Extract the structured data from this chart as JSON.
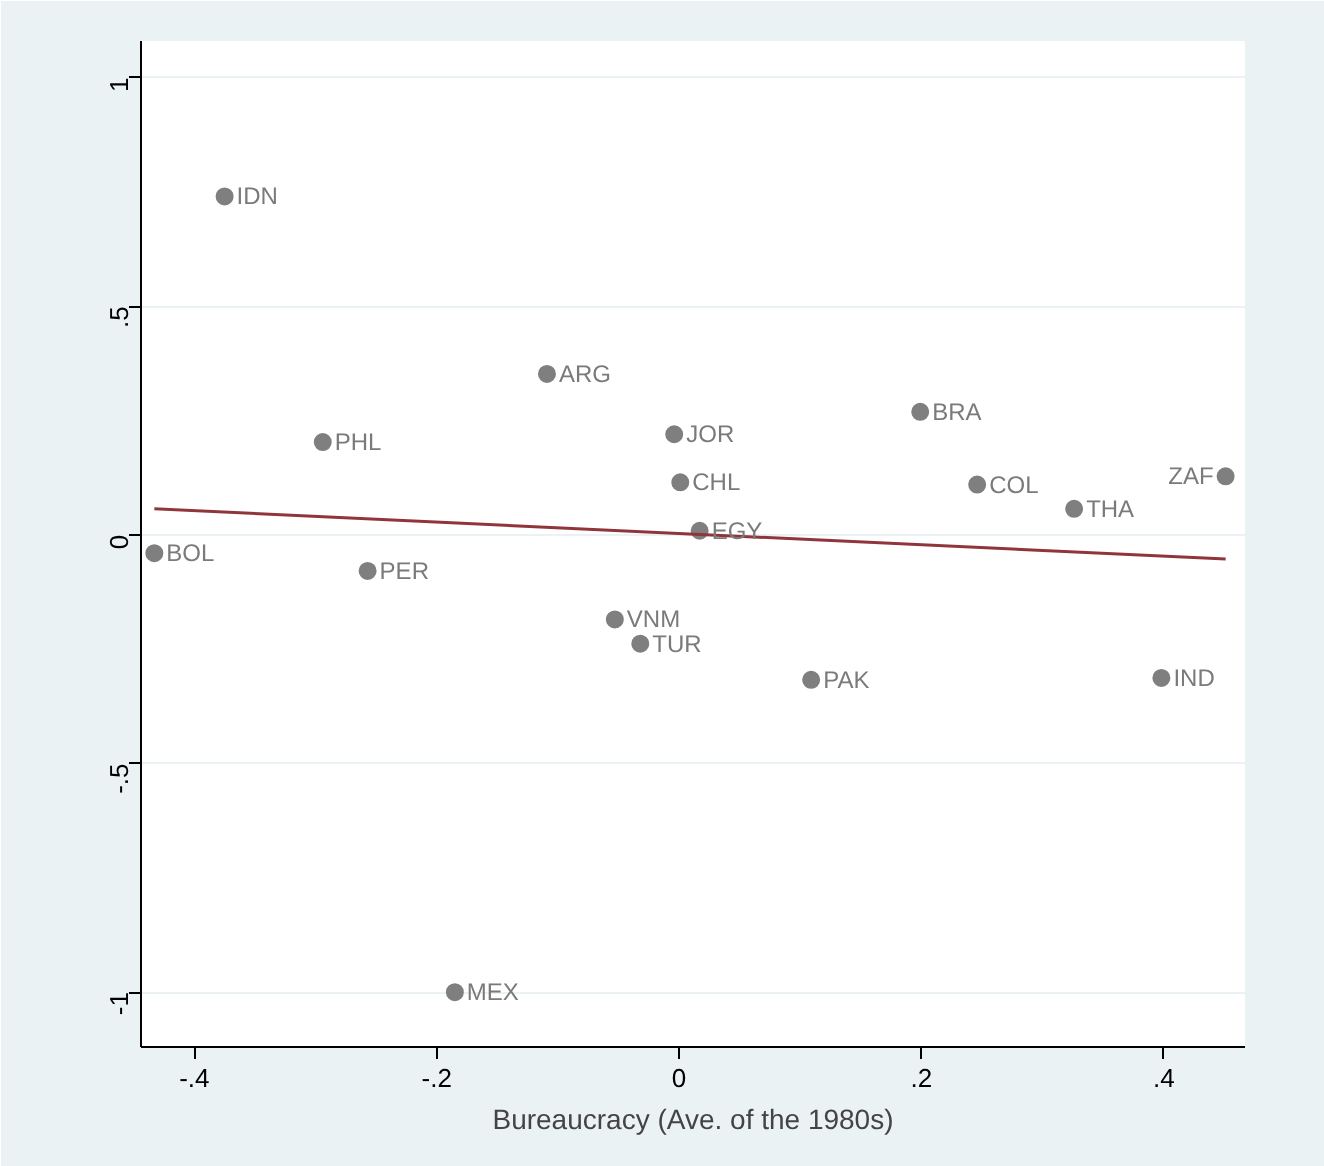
{
  "chart_data": {
    "type": "scatter",
    "xlabel": "Bureaucracy (Ave. of the 1980s)",
    "xlim": [
      -0.444,
      0.467
    ],
    "ylim": [
      -1.12,
      1.08
    ],
    "xticks": [
      {
        "value": -0.4,
        "label": "-.4"
      },
      {
        "value": -0.2,
        "label": "-.2"
      },
      0,
      {
        "value": 0.2,
        "label": ".2"
      },
      {
        "value": 0.4,
        "label": ".4"
      }
    ],
    "yticks": [
      -1,
      {
        "value": -0.5,
        "label": "-.5"
      },
      0,
      {
        "value": 0.5,
        "label": ".5"
      },
      1
    ],
    "grid": "y",
    "marker": "circle",
    "series": [
      {
        "color": "#7f7f7f",
        "x": [
          -0.375,
          -0.294,
          -0.109,
          -0.004,
          0.001,
          0.017,
          0.199,
          0.246,
          0.326,
          0.451,
          -0.433,
          -0.257,
          -0.053,
          -0.032,
          0.109,
          0.398,
          -0.185
        ],
        "values": [
          0.74,
          0.203,
          0.352,
          0.22,
          0.115,
          0.009,
          0.269,
          0.11,
          0.057,
          0.128,
          -0.04,
          -0.079,
          -0.185,
          -0.238,
          -0.317,
          -0.313,
          -1.0
        ]
      },
      {
        "type": "line",
        "color": "#90353b",
        "marker": "none",
        "x": [
          -0.433,
          0.451
        ],
        "values": [
          0.057,
          -0.053
        ]
      }
    ],
    "annotations": [
      {
        "text": "IDN",
        "x": -0.375,
        "y": 0.74
      },
      {
        "text": "PHL",
        "x": -0.294,
        "y": 0.203
      },
      {
        "text": "ARG",
        "x": -0.109,
        "y": 0.352
      },
      {
        "text": "JOR",
        "x": -0.004,
        "y": 0.22
      },
      {
        "text": "CHL",
        "x": 0.001,
        "y": 0.115
      },
      {
        "text": "EGY",
        "x": 0.017,
        "y": 0.009
      },
      {
        "text": "BRA",
        "x": 0.199,
        "y": 0.269
      },
      {
        "text": "COL",
        "x": 0.246,
        "y": 0.11
      },
      {
        "text": "THA",
        "x": 0.326,
        "y": 0.057
      },
      {
        "text": "ZAF",
        "x": 0.451,
        "y": 0.128
      },
      {
        "text": "BOL",
        "x": -0.433,
        "y": -0.04
      },
      {
        "text": "PER",
        "x": -0.257,
        "y": -0.079
      },
      {
        "text": "VNM",
        "x": -0.053,
        "y": -0.185
      },
      {
        "text": "TUR",
        "x": -0.032,
        "y": -0.238
      },
      {
        "text": "PAK",
        "x": 0.109,
        "y": -0.317
      },
      {
        "text": "IND",
        "x": 0.398,
        "y": -0.313
      },
      {
        "text": "MEX",
        "x": -0.185,
        "y": -1.0
      }
    ]
  }
}
